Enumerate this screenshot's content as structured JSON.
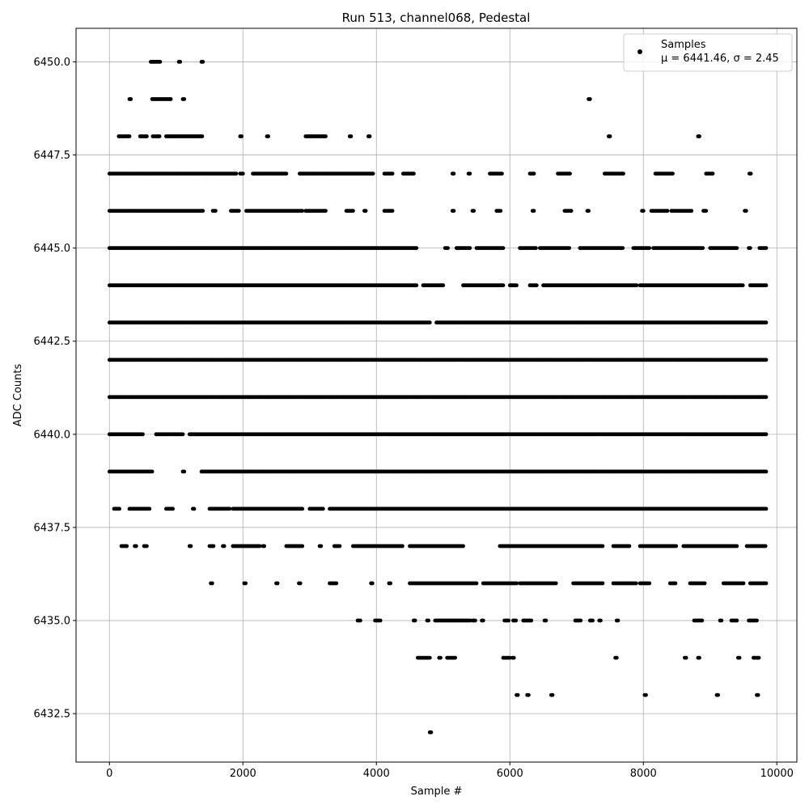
{
  "chart_data": {
    "type": "scatter",
    "title": "Run 513, channel068, Pedestal",
    "xlabel": "Sample #",
    "ylabel": "ADC Counts",
    "xlim": [
      -500,
      10300
    ],
    "ylim": [
      6431.2,
      6450.9
    ],
    "x_ticks": [
      0,
      2000,
      4000,
      6000,
      8000,
      10000
    ],
    "x_tick_labels": [
      "0",
      "2000",
      "4000",
      "6000",
      "8000",
      "10000"
    ],
    "y_ticks": [
      6432.5,
      6435.0,
      6437.5,
      6440.0,
      6442.5,
      6445.0,
      6447.5,
      6450.0
    ],
    "y_tick_labels": [
      "6432.5",
      "6435.0",
      "6437.5",
      "6440.0",
      "6442.5",
      "6445.0",
      "6447.5",
      "6450.0"
    ],
    "grid": true,
    "legend_position": "top-right",
    "marker_color": "#000000",
    "series": [
      {
        "name": "Samples",
        "stats_label": "μ = 6441.46, σ = 2.45",
        "x_range": [
          0,
          9840
        ],
        "levels": [
          {
            "y": 6450,
            "segments": [
              [
                620,
                760
              ],
              [
                1040,
                1060
              ],
              [
                1380,
                1400
              ]
            ]
          },
          {
            "y": 6449,
            "segments": [
              [
                300,
                320
              ],
              [
                640,
                920
              ],
              [
                1100,
                1120
              ],
              [
                7180,
                7200
              ]
            ]
          },
          {
            "y": 6448,
            "segments": [
              [
                140,
                300
              ],
              [
                460,
                560
              ],
              [
                650,
                760
              ],
              [
                850,
                1400
              ],
              [
                1960,
                1980
              ],
              [
                2360,
                2380
              ],
              [
                2940,
                3240
              ],
              [
                3600,
                3620
              ],
              [
                3880,
                3900
              ],
              [
                7480,
                7500
              ],
              [
                8820,
                8840
              ]
            ]
          },
          {
            "y": 6447,
            "segments": [
              [
                0,
                1900
              ],
              [
                1960,
                2000
              ],
              [
                2150,
                2650
              ],
              [
                2850,
                3950
              ],
              [
                4120,
                4240
              ],
              [
                4400,
                4560
              ],
              [
                5140,
                5160
              ],
              [
                5380,
                5400
              ],
              [
                5700,
                5880
              ],
              [
                6300,
                6360
              ],
              [
                6720,
                6900
              ],
              [
                7420,
                7700
              ],
              [
                8180,
                8440
              ],
              [
                8940,
                9050
              ],
              [
                9590,
                9610
              ]
            ]
          },
          {
            "y": 6446,
            "segments": [
              [
                0,
                1400
              ],
              [
                1550,
                1600
              ],
              [
                1820,
                1950
              ],
              [
                2050,
                2900
              ],
              [
                2940,
                3250
              ],
              [
                3550,
                3650
              ],
              [
                3820,
                3840
              ],
              [
                4120,
                4240
              ],
              [
                5140,
                5160
              ],
              [
                5440,
                5460
              ],
              [
                5800,
                5860
              ],
              [
                6340,
                6360
              ],
              [
                6820,
                6920
              ],
              [
                7160,
                7180
              ],
              [
                7980,
                8000
              ],
              [
                8120,
                8360
              ],
              [
                8420,
                8720
              ],
              [
                8900,
                8940
              ],
              [
                9520,
                9540
              ]
            ]
          },
          {
            "y": 6445,
            "segments": [
              [
                0,
                4600
              ],
              [
                5030,
                5070
              ],
              [
                5200,
                5400
              ],
              [
                5500,
                5900
              ],
              [
                6150,
                6400
              ],
              [
                6450,
                6900
              ],
              [
                7050,
                7700
              ],
              [
                7850,
                8100
              ],
              [
                8150,
                8900
              ],
              [
                9000,
                9400
              ],
              [
                9580,
                9600
              ],
              [
                9740,
                9840
              ]
            ]
          },
          {
            "y": 6444,
            "segments": [
              [
                0,
                4600
              ],
              [
                4700,
                5000
              ],
              [
                5300,
                5900
              ],
              [
                6000,
                6100
              ],
              [
                6300,
                6400
              ],
              [
                6500,
                7900
              ],
              [
                7950,
                9500
              ],
              [
                9600,
                9840
              ]
            ]
          },
          {
            "y": 6443,
            "segments": [
              [
                0,
                4800
              ],
              [
                4900,
                9840
              ]
            ]
          },
          {
            "y": 6442,
            "segments": [
              [
                0,
                9840
              ]
            ]
          },
          {
            "y": 6441,
            "segments": [
              [
                0,
                9840
              ]
            ]
          },
          {
            "y": 6440,
            "segments": [
              [
                0,
                500
              ],
              [
                700,
                1100
              ],
              [
                1200,
                9840
              ]
            ]
          },
          {
            "y": 6439,
            "segments": [
              [
                0,
                650
              ],
              [
                1100,
                1120
              ],
              [
                1380,
                9840
              ]
            ]
          },
          {
            "y": 6438,
            "segments": [
              [
                70,
                150
              ],
              [
                300,
                600
              ],
              [
                850,
                950
              ],
              [
                1250,
                1270
              ],
              [
                1500,
                1800
              ],
              [
                1850,
                2900
              ],
              [
                3000,
                3200
              ],
              [
                3300,
                9840
              ]
            ]
          },
          {
            "y": 6437,
            "segments": [
              [
                180,
                260
              ],
              [
                380,
                400
              ],
              [
                520,
                570
              ],
              [
                1200,
                1220
              ],
              [
                1500,
                1560
              ],
              [
                1700,
                1720
              ],
              [
                1850,
                2250
              ],
              [
                2300,
                2320
              ],
              [
                2650,
                2900
              ],
              [
                3150,
                3170
              ],
              [
                3370,
                3450
              ],
              [
                3650,
                4400
              ],
              [
                4500,
                5300
              ],
              [
                5850,
                7400
              ],
              [
                7550,
                7800
              ],
              [
                7950,
                8500
              ],
              [
                8600,
                9400
              ],
              [
                9550,
                9840
              ]
            ]
          },
          {
            "y": 6436,
            "segments": [
              [
                1520,
                1540
              ],
              [
                2020,
                2040
              ],
              [
                2500,
                2520
              ],
              [
                2840,
                2860
              ],
              [
                3300,
                3400
              ],
              [
                3920,
                3940
              ],
              [
                4190,
                4210
              ],
              [
                4500,
                5500
              ],
              [
                5600,
                6100
              ],
              [
                6150,
                6700
              ],
              [
                6950,
                7400
              ],
              [
                7550,
                7900
              ],
              [
                7950,
                8100
              ],
              [
                8400,
                8480
              ],
              [
                8700,
                8920
              ],
              [
                9200,
                9500
              ],
              [
                9600,
                9840
              ]
            ]
          },
          {
            "y": 6435,
            "segments": [
              [
                3720,
                3760
              ],
              [
                3980,
                4060
              ],
              [
                4560,
                4580
              ],
              [
                4760,
                4780
              ],
              [
                4880,
                5400
              ],
              [
                5440,
                5480
              ],
              [
                5580,
                5600
              ],
              [
                5920,
                5980
              ],
              [
                6050,
                6100
              ],
              [
                6200,
                6320
              ],
              [
                6520,
                6540
              ],
              [
                6980,
                7060
              ],
              [
                7200,
                7240
              ],
              [
                7340,
                7360
              ],
              [
                7600,
                7620
              ],
              [
                8760,
                8880
              ],
              [
                9150,
                9170
              ],
              [
                9320,
                9400
              ],
              [
                9580,
                9700
              ]
            ]
          },
          {
            "y": 6434,
            "segments": [
              [
                4620,
                4800
              ],
              [
                4940,
                4960
              ],
              [
                5060,
                5180
              ],
              [
                5900,
                6000
              ],
              [
                6040,
                6060
              ],
              [
                7580,
                7600
              ],
              [
                8620,
                8640
              ],
              [
                8820,
                8840
              ],
              [
                9420,
                9440
              ],
              [
                9650,
                9740
              ]
            ]
          },
          {
            "y": 6433,
            "segments": [
              [
                6100,
                6120
              ],
              [
                6260,
                6280
              ],
              [
                6620,
                6640
              ],
              [
                8020,
                8040
              ],
              [
                9100,
                9120
              ],
              [
                9700,
                9720
              ]
            ]
          },
          {
            "y": 6432,
            "segments": [
              [
                4800,
                4820
              ]
            ]
          }
        ]
      }
    ]
  }
}
